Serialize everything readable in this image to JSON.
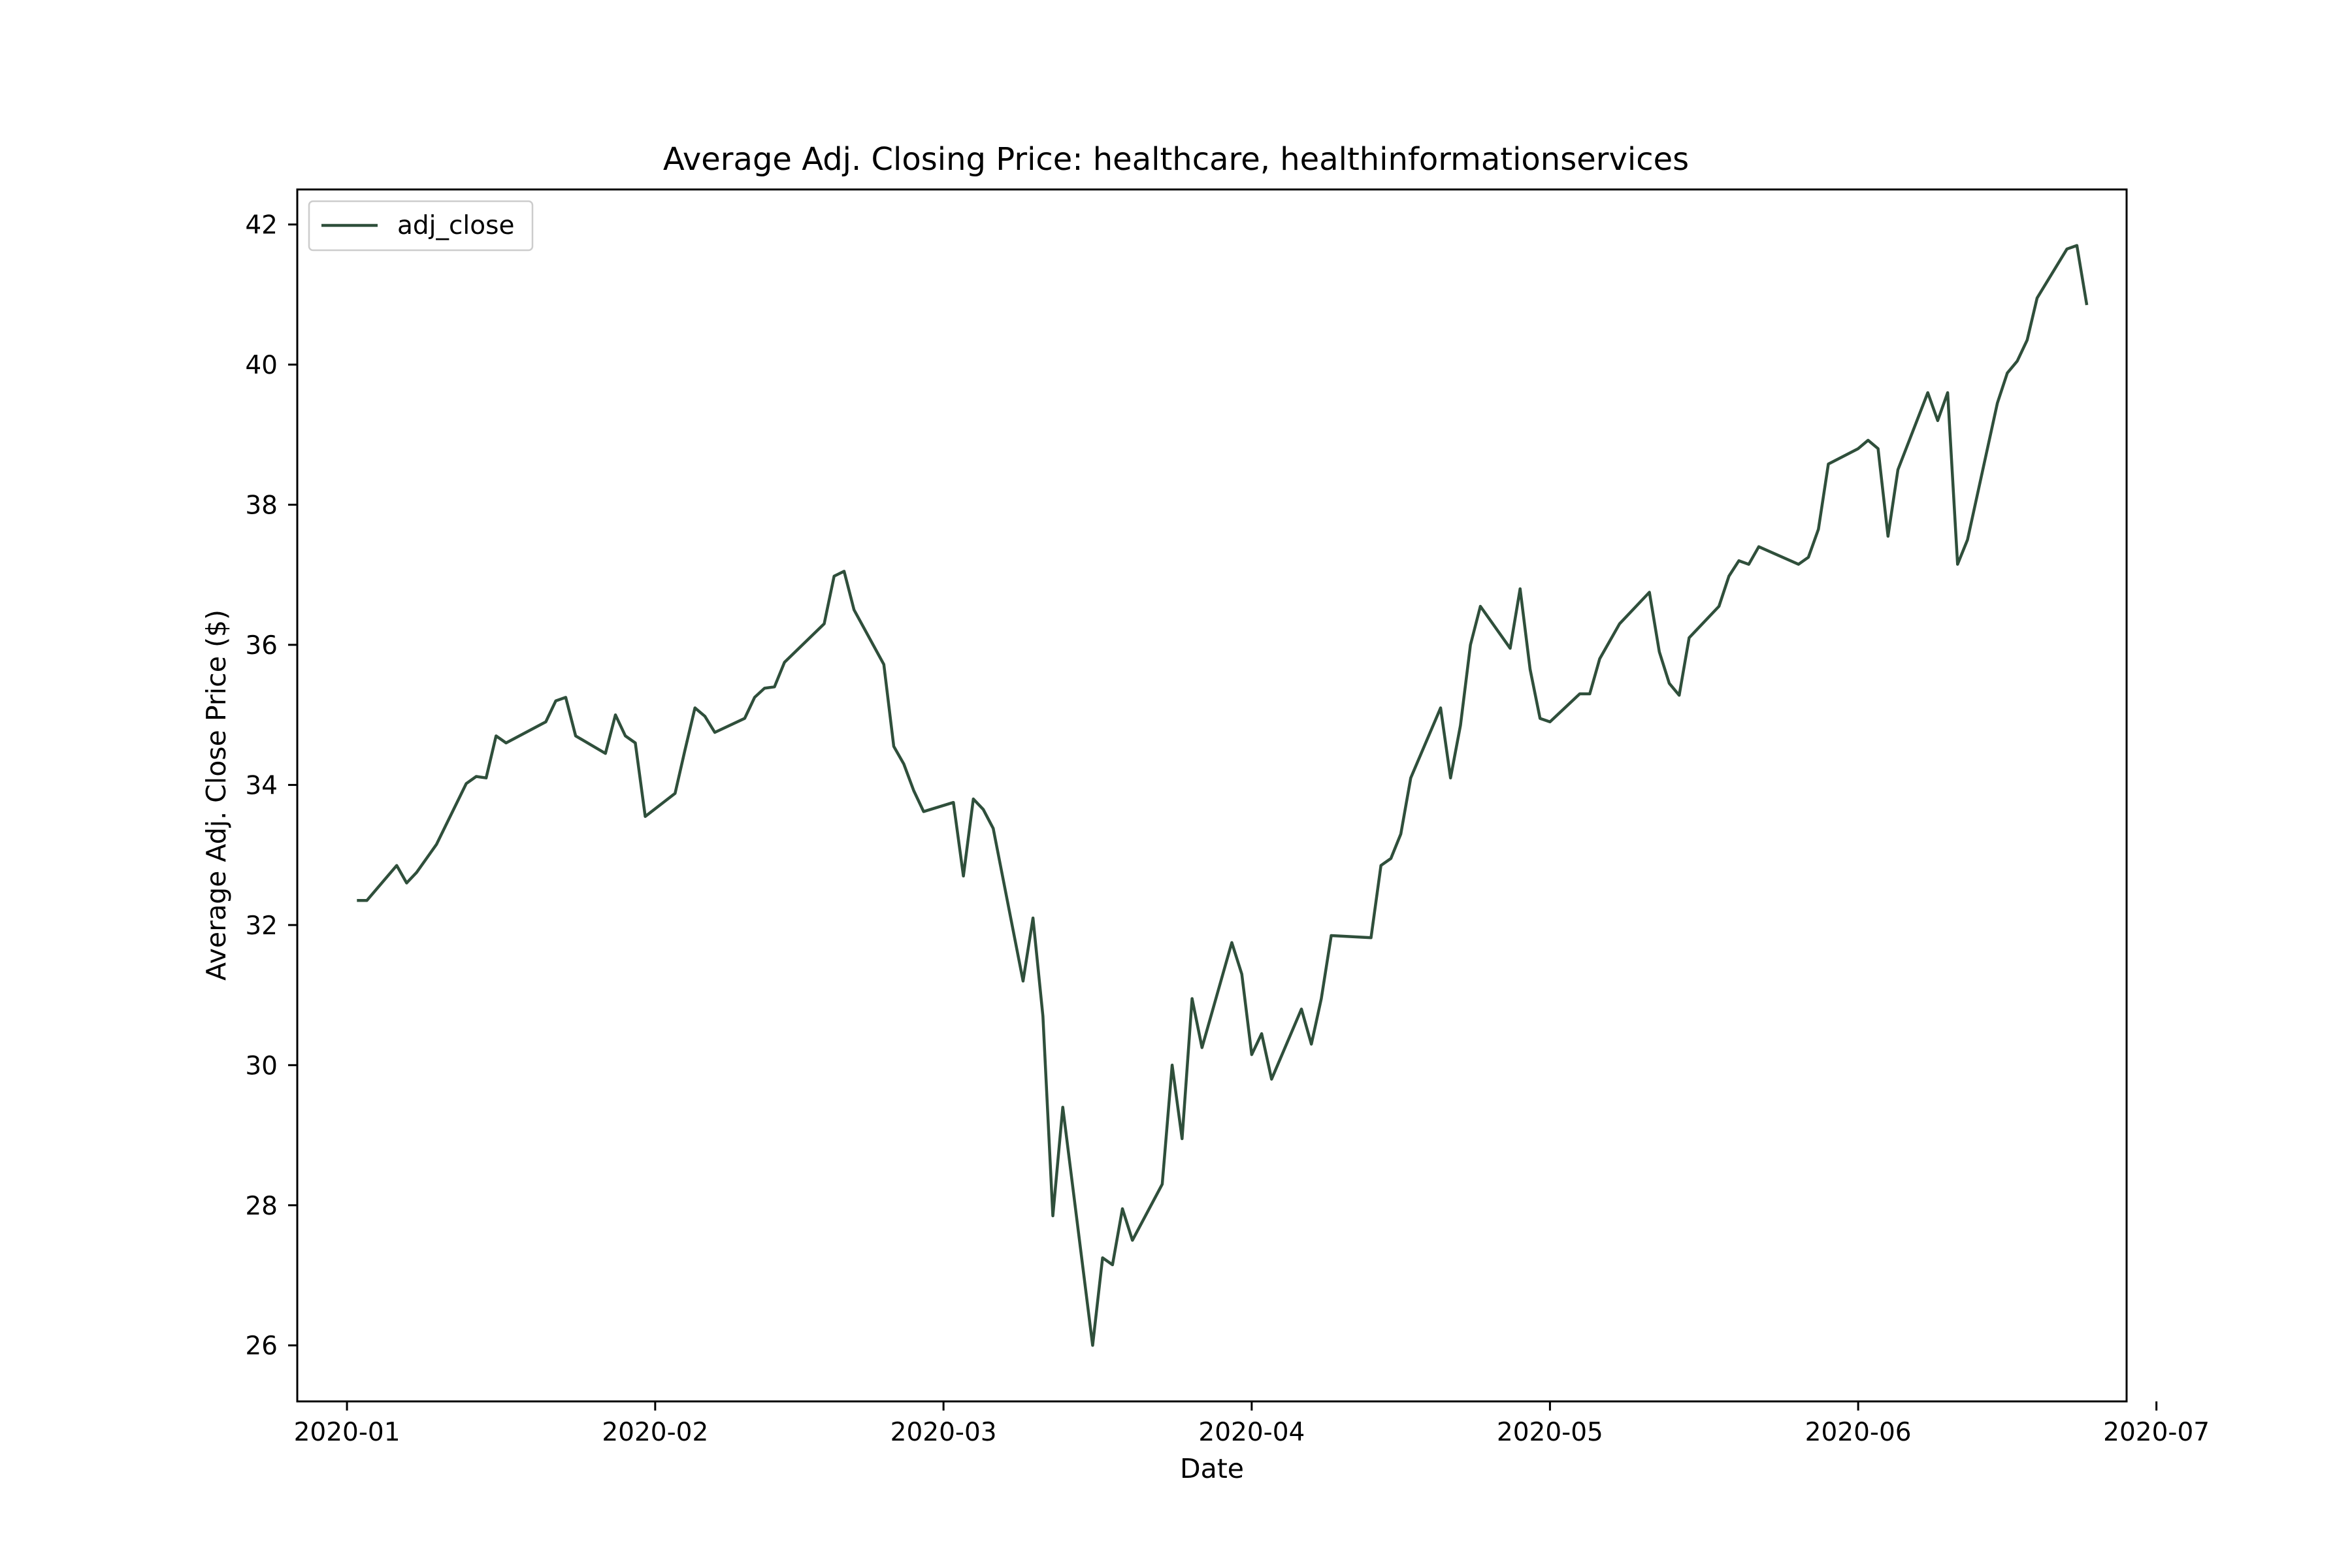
{
  "chart_data": {
    "type": "line",
    "title": "Average Adj. Closing Price: healthcare, healthinformationservices",
    "xlabel": "Date",
    "ylabel": "Average Adj. Close Price ($)",
    "xlim": [
      "2019-12-27",
      "2020-06-28"
    ],
    "ylim": [
      25.2,
      42.5
    ],
    "x_ticks": [
      "2020-01-01",
      "2020-02-01",
      "2020-03-01",
      "2020-04-01",
      "2020-05-01",
      "2020-06-01",
      "2020-07-01"
    ],
    "x_tick_labels": [
      "2020-01",
      "2020-02",
      "2020-03",
      "2020-04",
      "2020-05",
      "2020-06",
      "2020-07"
    ],
    "y_ticks": [
      26,
      28,
      30,
      32,
      34,
      36,
      38,
      40,
      42
    ],
    "y_tick_labels": [
      "26",
      "28",
      "30",
      "32",
      "34",
      "36",
      "38",
      "40",
      "42"
    ],
    "grid": false,
    "legend": {
      "position": "upper-left",
      "entries": [
        "adj_close"
      ]
    },
    "colors": {
      "line": "#2f4f3b",
      "axes": "#000000",
      "legend_border": "#cccccc"
    },
    "series": [
      {
        "name": "adj_close",
        "x": [
          "2020-01-02",
          "2020-01-03",
          "2020-01-06",
          "2020-01-07",
          "2020-01-08",
          "2020-01-09",
          "2020-01-10",
          "2020-01-13",
          "2020-01-14",
          "2020-01-15",
          "2020-01-16",
          "2020-01-17",
          "2020-01-21",
          "2020-01-22",
          "2020-01-23",
          "2020-01-24",
          "2020-01-27",
          "2020-01-28",
          "2020-01-29",
          "2020-01-30",
          "2020-01-31",
          "2020-02-03",
          "2020-02-04",
          "2020-02-05",
          "2020-02-06",
          "2020-02-07",
          "2020-02-10",
          "2020-02-11",
          "2020-02-12",
          "2020-02-13",
          "2020-02-14",
          "2020-02-18",
          "2020-02-19",
          "2020-02-20",
          "2020-02-21",
          "2020-02-24",
          "2020-02-25",
          "2020-02-26",
          "2020-02-27",
          "2020-02-28",
          "2020-03-02",
          "2020-03-03",
          "2020-03-04",
          "2020-03-05",
          "2020-03-06",
          "2020-03-09",
          "2020-03-10",
          "2020-03-11",
          "2020-03-12",
          "2020-03-13",
          "2020-03-16",
          "2020-03-17",
          "2020-03-18",
          "2020-03-19",
          "2020-03-20",
          "2020-03-23",
          "2020-03-24",
          "2020-03-25",
          "2020-03-26",
          "2020-03-27",
          "2020-03-30",
          "2020-03-31",
          "2020-04-01",
          "2020-04-02",
          "2020-04-03",
          "2020-04-06",
          "2020-04-07",
          "2020-04-08",
          "2020-04-09",
          "2020-04-13",
          "2020-04-14",
          "2020-04-15",
          "2020-04-16",
          "2020-04-17",
          "2020-04-20",
          "2020-04-21",
          "2020-04-22",
          "2020-04-23",
          "2020-04-24",
          "2020-04-27",
          "2020-04-28",
          "2020-04-29",
          "2020-04-30",
          "2020-05-01",
          "2020-05-04",
          "2020-05-05",
          "2020-05-06",
          "2020-05-07",
          "2020-05-08",
          "2020-05-11",
          "2020-05-12",
          "2020-05-13",
          "2020-05-14",
          "2020-05-15",
          "2020-05-18",
          "2020-05-19",
          "2020-05-20",
          "2020-05-21",
          "2020-05-22",
          "2020-05-26",
          "2020-05-27",
          "2020-05-28",
          "2020-05-29",
          "2020-06-01",
          "2020-06-02",
          "2020-06-03",
          "2020-06-04",
          "2020-06-05",
          "2020-06-08",
          "2020-06-09",
          "2020-06-10",
          "2020-06-11",
          "2020-06-12",
          "2020-06-15",
          "2020-06-16",
          "2020-06-17",
          "2020-06-18",
          "2020-06-19",
          "2020-06-22",
          "2020-06-23",
          "2020-06-24"
        ],
        "y": [
          32.35,
          32.35,
          32.85,
          32.6,
          32.75,
          32.95,
          33.15,
          34.02,
          34.12,
          34.1,
          34.7,
          34.6,
          34.9,
          35.2,
          35.25,
          34.7,
          34.45,
          35.0,
          34.7,
          34.6,
          33.55,
          33.88,
          34.5,
          35.1,
          34.98,
          34.75,
          34.95,
          35.25,
          35.38,
          35.4,
          35.75,
          36.3,
          36.98,
          37.05,
          36.5,
          35.72,
          34.55,
          34.3,
          33.92,
          33.62,
          33.75,
          32.7,
          33.8,
          33.65,
          33.38,
          31.2,
          32.1,
          30.7,
          27.85,
          29.4,
          26.0,
          27.25,
          27.15,
          27.95,
          27.5,
          28.3,
          30.0,
          28.95,
          30.95,
          30.25,
          31.75,
          31.3,
          30.15,
          30.45,
          29.8,
          30.8,
          30.3,
          30.95,
          31.85,
          31.82,
          32.85,
          32.95,
          33.3,
          34.1,
          35.1,
          34.1,
          34.85,
          36.0,
          36.55,
          35.95,
          36.8,
          35.65,
          34.95,
          34.9,
          35.3,
          35.3,
          35.8,
          36.05,
          36.3,
          36.75,
          35.9,
          35.45,
          35.28,
          36.1,
          36.55,
          36.98,
          37.2,
          37.15,
          37.4,
          37.15,
          37.25,
          37.65,
          38.58,
          38.8,
          38.92,
          38.8,
          37.55,
          38.5,
          39.6,
          39.2,
          39.6,
          37.15,
          37.5,
          39.45,
          39.88,
          40.05,
          40.35,
          40.95,
          41.65,
          41.7,
          40.85
        ]
      }
    ]
  }
}
